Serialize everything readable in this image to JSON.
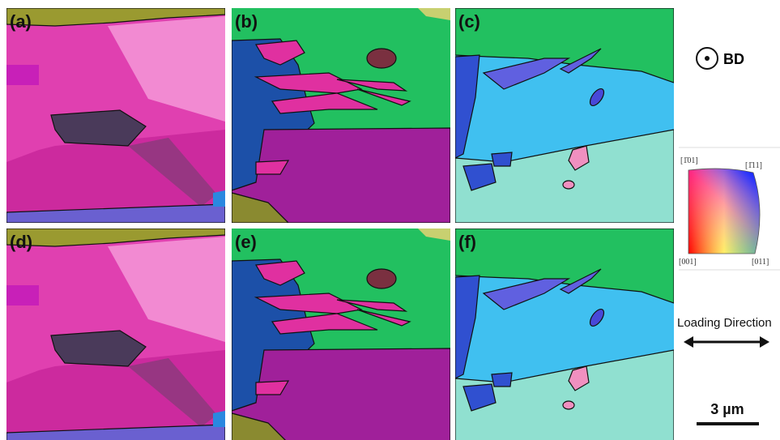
{
  "panels": [
    {
      "label": "(a)"
    },
    {
      "label": "(b)"
    },
    {
      "label": "(c)"
    },
    {
      "label": "(d)"
    },
    {
      "label": "(e)"
    },
    {
      "label": "(f)"
    }
  ],
  "legend": {
    "direction_label": "BD",
    "ipf_corners": [
      "[1̄01]",
      "[1̄11]",
      "[001]",
      "[011]"
    ],
    "loading_label": "Loading Direction",
    "scale_bar": "3 µm"
  }
}
